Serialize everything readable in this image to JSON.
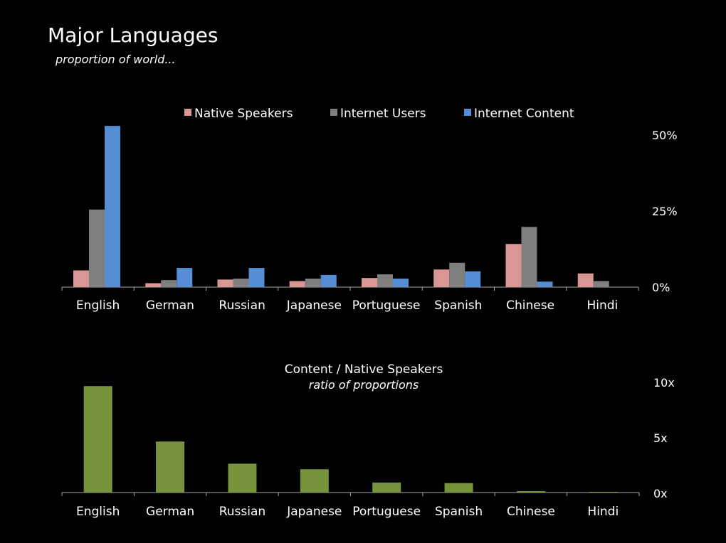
{
  "title": "Major Languages",
  "subtitle": "proportion of world...",
  "colors": {
    "native": "#d99694",
    "users": "#7f7f7f",
    "content": "#558ed5",
    "ratio": "#77933c",
    "axis": "#a6a6a6"
  },
  "chart_data": [
    {
      "type": "bar",
      "categories": [
        "English",
        "German",
        "Russian",
        "Japanese",
        "Portuguese",
        "Spanish",
        "Chinese",
        "Hindi"
      ],
      "series": [
        {
          "name": "Native Speakers",
          "values": [
            5.5,
            1.3,
            2.5,
            2.0,
            3.0,
            5.8,
            14.2,
            4.5
          ]
        },
        {
          "name": "Internet Users",
          "values": [
            25.5,
            2.3,
            2.8,
            2.8,
            4.2,
            8.0,
            19.8,
            2.0
          ]
        },
        {
          "name": "Internet Content",
          "values": [
            53.0,
            6.3,
            6.3,
            4.0,
            2.8,
            5.2,
            1.8,
            0.0
          ]
        }
      ],
      "yticks": [
        "0%",
        "25%",
        "50%"
      ],
      "ylim": [
        0,
        50
      ],
      "legend": "top",
      "grid": false
    },
    {
      "type": "bar",
      "title": "Content / Native Speakers",
      "subtitle": "ratio of proportions",
      "categories": [
        "English",
        "German",
        "Russian",
        "Japanese",
        "Portuguese",
        "Spanish",
        "Chinese",
        "Hindi"
      ],
      "values": [
        9.6,
        4.6,
        2.6,
        2.1,
        0.9,
        0.85,
        0.13,
        0.05
      ],
      "yticks": [
        "0x",
        "5x",
        "10x"
      ],
      "ylim": [
        0,
        10
      ],
      "grid": false
    }
  ]
}
